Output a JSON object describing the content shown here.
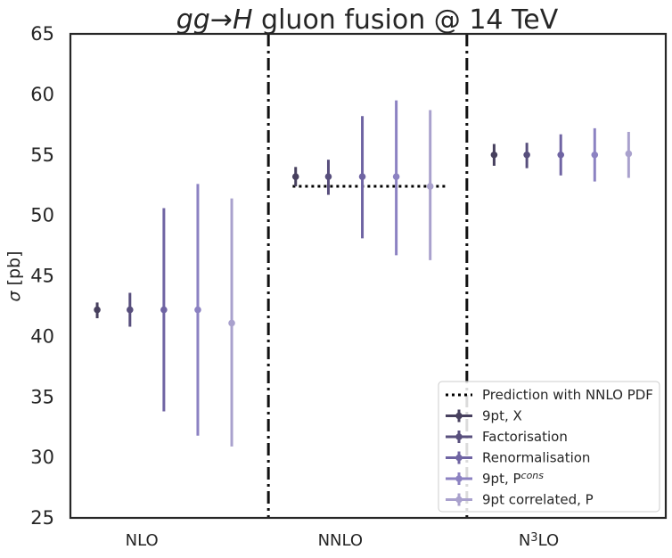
{
  "chart_data": {
    "type": "scatter",
    "title_parts": [
      {
        "text": "gg→H",
        "style": "italic"
      },
      {
        "text": " gluon fusion @ 14 TeV",
        "style": "normal"
      }
    ],
    "ylabel_symbol": "σ",
    "ylabel_unit": " [pb]",
    "ylim": [
      25,
      65
    ],
    "yticks": [
      "25",
      "30",
      "35",
      "40",
      "45",
      "50",
      "55",
      "60",
      "65"
    ],
    "grid": false,
    "legend_position": "lower-right",
    "categories": [
      {
        "label": "NLO",
        "sup": "",
        "rest": ""
      },
      {
        "label": "NNLO",
        "sup": "",
        "rest": ""
      },
      {
        "label": "N",
        "sup": "3",
        "rest": "LO"
      }
    ],
    "reference": {
      "name": "Prediction with NNLO PDF",
      "category_index": 1,
      "value": 52.4,
      "style": "dotted",
      "color": "#000000"
    },
    "series": [
      {
        "name": "9pt, X",
        "name_sup": "",
        "color": "#47405e",
        "points": [
          {
            "y": 42.2,
            "low": 41.5,
            "high": 42.8
          },
          {
            "y": 53.2,
            "low": 52.4,
            "high": 54.0
          },
          {
            "y": 55.0,
            "low": 54.1,
            "high": 55.9
          }
        ]
      },
      {
        "name": "Factorisation",
        "name_sup": "",
        "color": "#584f7d",
        "points": [
          {
            "y": 42.2,
            "low": 40.8,
            "high": 43.6
          },
          {
            "y": 53.2,
            "low": 51.7,
            "high": 54.6
          },
          {
            "y": 55.0,
            "low": 53.9,
            "high": 56.0
          }
        ]
      },
      {
        "name": "Renormalisation",
        "name_sup": "",
        "color": "#6f64a3",
        "points": [
          {
            "y": 42.2,
            "low": 33.8,
            "high": 50.6
          },
          {
            "y": 53.2,
            "low": 48.1,
            "high": 58.2
          },
          {
            "y": 55.0,
            "low": 53.3,
            "high": 56.7
          }
        ]
      },
      {
        "name": "9pt, P",
        "name_sup": "cons",
        "color": "#8c82c2",
        "points": [
          {
            "y": 42.2,
            "low": 31.8,
            "high": 52.6
          },
          {
            "y": 53.2,
            "low": 46.7,
            "high": 59.5
          },
          {
            "y": 55.0,
            "low": 52.8,
            "high": 57.2
          }
        ]
      },
      {
        "name": "9pt correlated, P",
        "name_sup": "",
        "color": "#a9a1cd",
        "points": [
          {
            "y": 41.1,
            "low": 30.9,
            "high": 51.4
          },
          {
            "y": 52.4,
            "low": 46.3,
            "high": 58.7
          },
          {
            "y": 55.1,
            "low": 53.1,
            "high": 56.9
          }
        ]
      }
    ]
  }
}
